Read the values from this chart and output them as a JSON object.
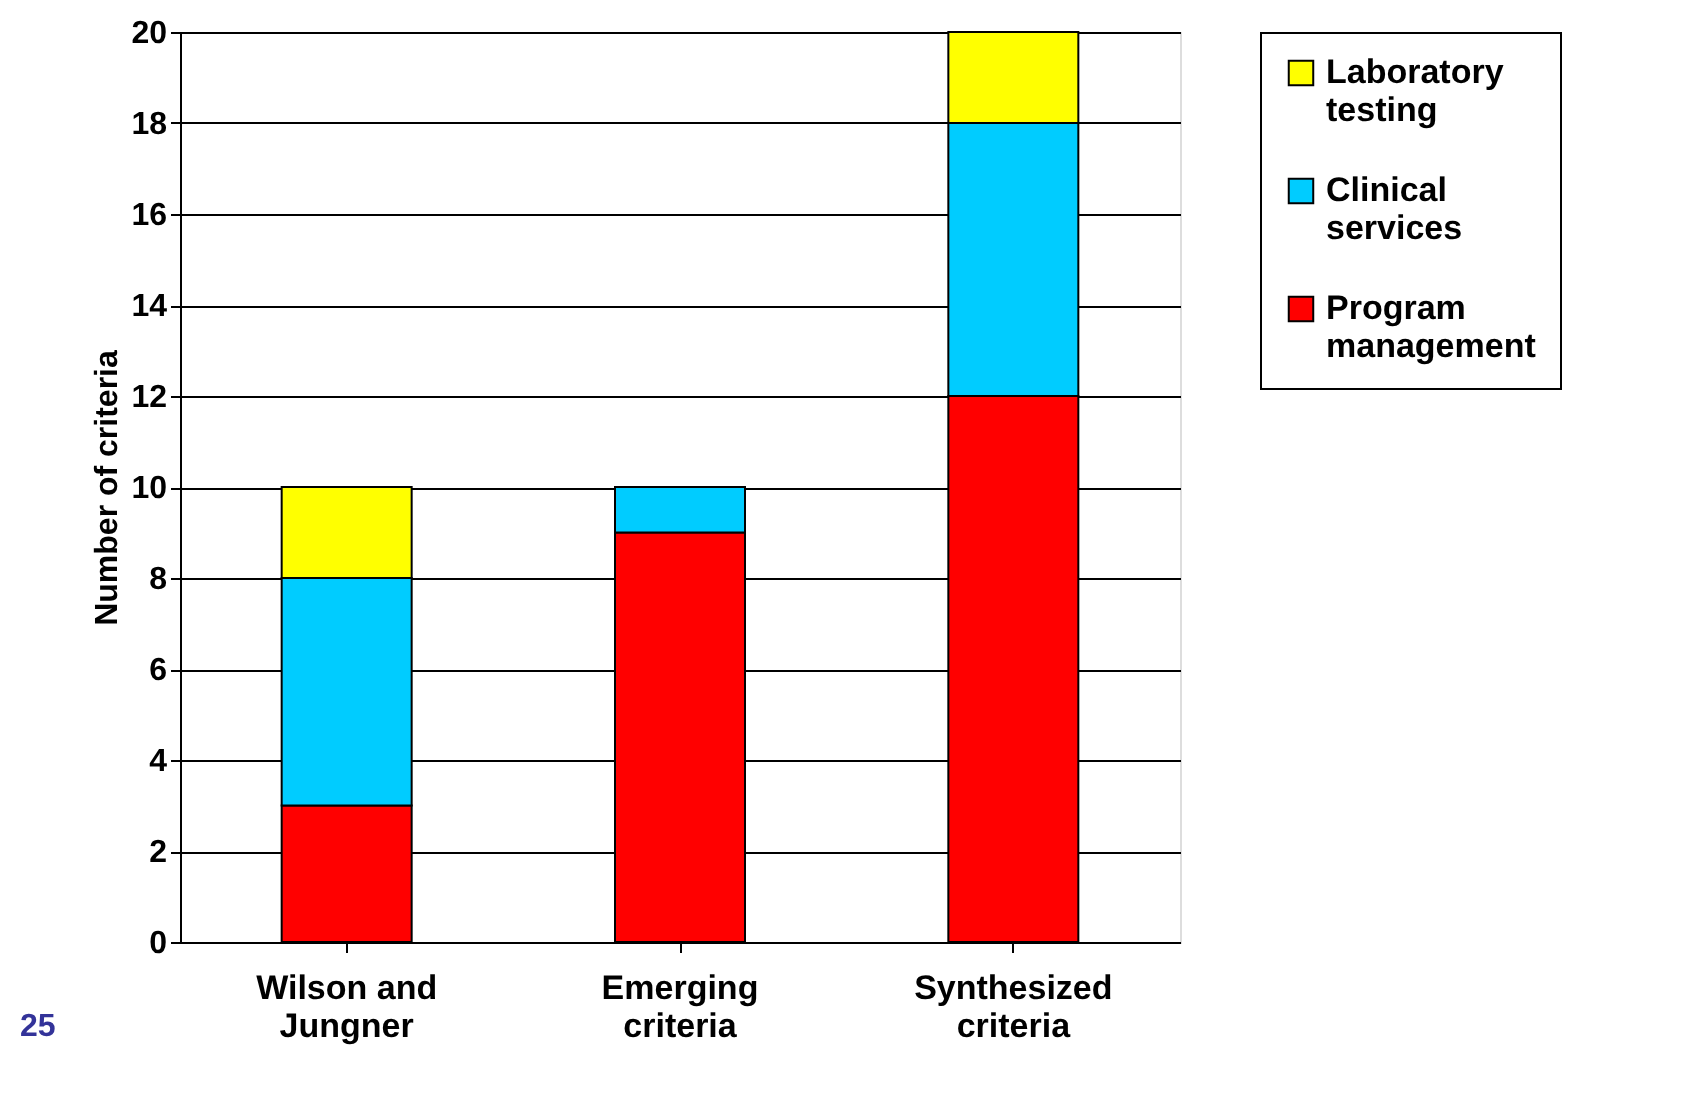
{
  "chart_data": {
    "type": "bar",
    "stacked": true,
    "ylabel": "Number of criteria",
    "categories": [
      "Wilson and Jungner",
      "Emerging criteria",
      "Synthesized criteria"
    ],
    "series": [
      {
        "name": "Program management",
        "color": "#ff0000",
        "values": [
          3,
          9,
          12
        ]
      },
      {
        "name": "Clinical services",
        "color": "#00ccff",
        "values": [
          5,
          1,
          6
        ]
      },
      {
        "name": "Laboratory testing",
        "color": "#ffff00",
        "values": [
          2,
          null,
          2
        ]
      }
    ],
    "ylim": [
      0,
      20
    ],
    "yticks": [
      0,
      2,
      4,
      6,
      8,
      10,
      12,
      14,
      16,
      18,
      20
    ],
    "grid": "y",
    "legend": "right",
    "annotations": [
      "25"
    ]
  }
}
